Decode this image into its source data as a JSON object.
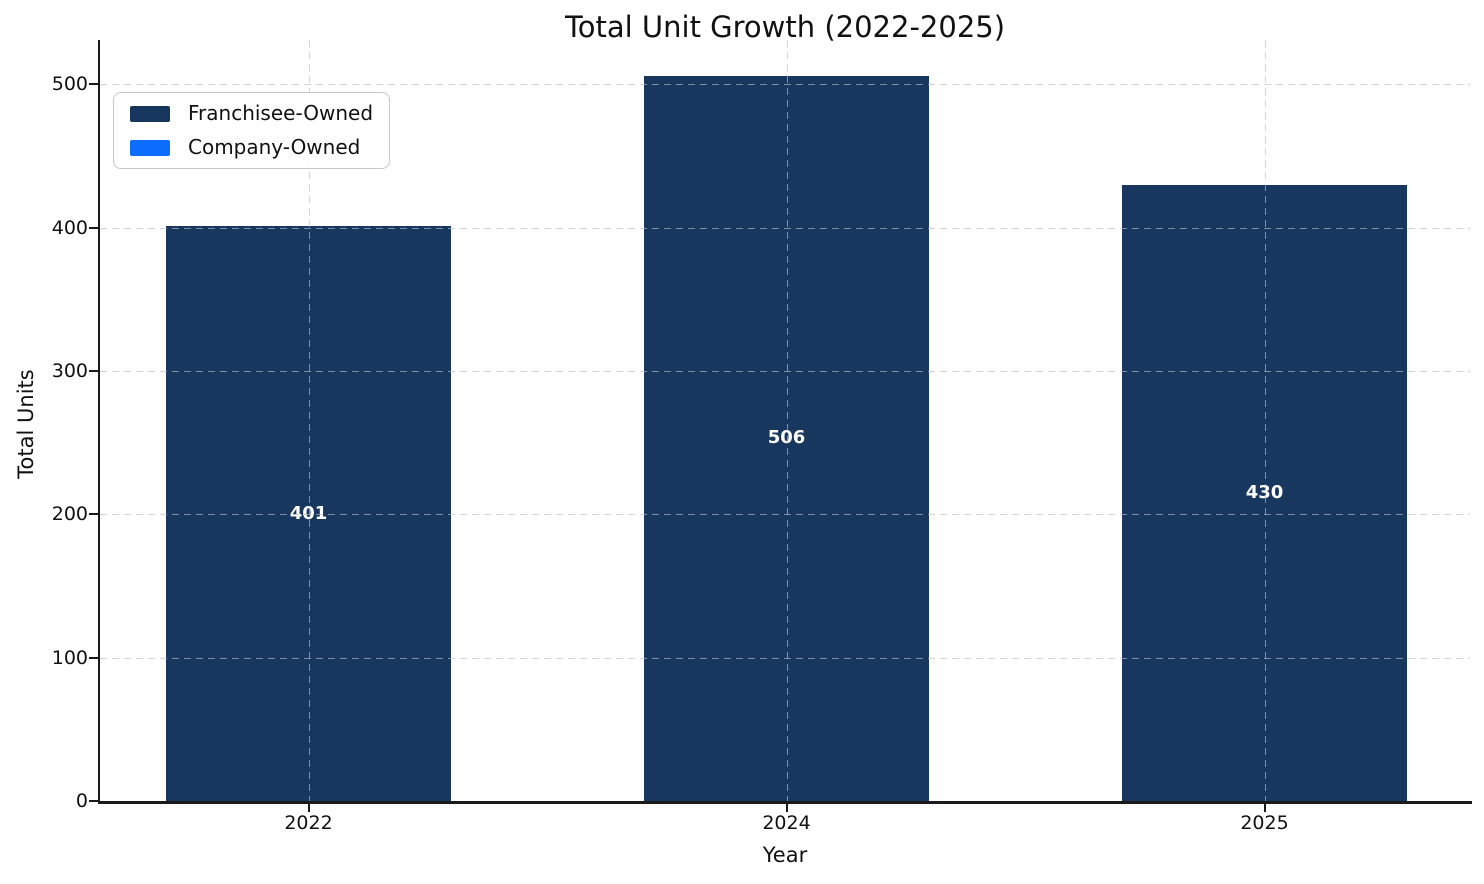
{
  "figure": {
    "background": "#ffffff"
  },
  "chart_data": {
    "type": "bar",
    "stacked": true,
    "title": "Total Unit Growth (2022-2025)",
    "xlabel": "Year",
    "ylabel": "Total Units",
    "categories": [
      "2022",
      "2024",
      "2025"
    ],
    "series": [
      {
        "name": "Franchisee-Owned",
        "color": "#17375e",
        "values": [
          401,
          506,
          430
        ]
      },
      {
        "name": "Company-Owned",
        "color": "#0d6efd",
        "values": [
          0,
          0,
          0
        ]
      }
    ],
    "bar_labels": [
      "401",
      "506",
      "430"
    ],
    "bar_label_color": "#ffffff",
    "yticks": [
      0,
      100,
      200,
      300,
      400,
      500
    ],
    "ylim": [
      0,
      531
    ],
    "grid": {
      "style": "dashed",
      "on": true
    },
    "legend": {
      "position": "upper-left",
      "entries": [
        "Franchisee-Owned",
        "Company-Owned"
      ]
    },
    "axis_color": "#1a1a1a"
  }
}
